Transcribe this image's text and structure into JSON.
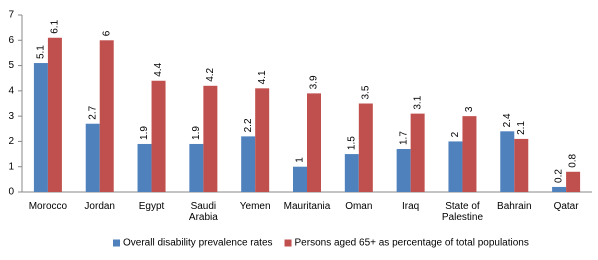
{
  "chart_data": {
    "type": "bar",
    "categories": [
      "Morocco",
      "Jordan",
      "Egypt",
      "Saudi Arabia",
      "Yemen",
      "Mauritania",
      "Oman",
      "Iraq",
      "State of Palestine",
      "Bahrain",
      "Qatar"
    ],
    "series": [
      {
        "name": "Overall disability prevalence rates",
        "color": "#4f81bd",
        "values": [
          5.1,
          2.7,
          1.9,
          1.9,
          2.2,
          1,
          1.5,
          1.7,
          2,
          2.4,
          0.2
        ]
      },
      {
        "name": "Persons aged 65+ as percentage of total populations",
        "color": "#c0504d",
        "values": [
          6.1,
          6,
          4.4,
          4.2,
          4.1,
          3.9,
          3.5,
          3.1,
          3,
          2.1,
          0.8
        ]
      }
    ],
    "ylim": [
      0,
      7
    ],
    "yticks": [
      0,
      1,
      2,
      3,
      4,
      5,
      6,
      7
    ],
    "grid": false,
    "legend": "bottom"
  }
}
